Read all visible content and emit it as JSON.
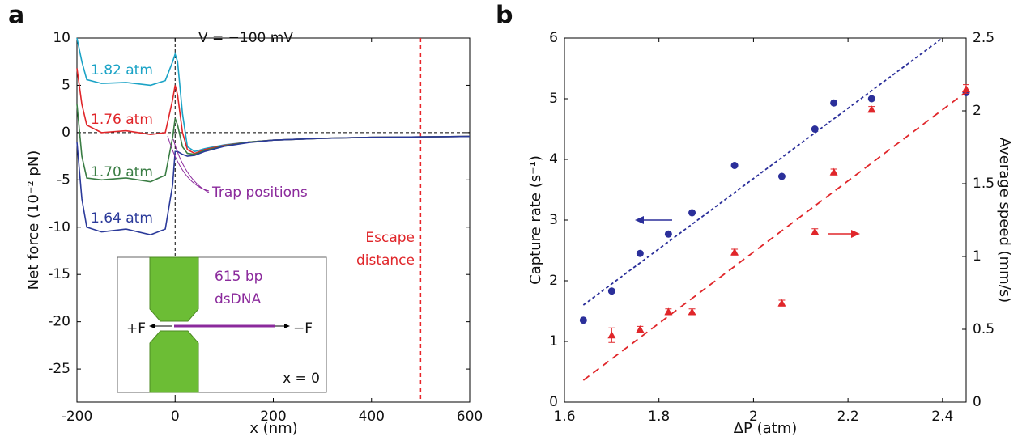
{
  "chart_data": [
    {
      "type": "line",
      "panel": "a",
      "xlabel": "x (nm)",
      "ylabel": "Net force (10⁻² pN)",
      "xlim": [
        -200,
        600
      ],
      "ylim": [
        -28.5,
        10
      ],
      "xticks": [
        -200,
        0,
        200,
        400,
        600
      ],
      "yticks": [
        10,
        5,
        0,
        -5,
        -10,
        -15,
        -20,
        -25
      ],
      "zero_lines": true,
      "escape_x": 500,
      "escape_color": "#e8252a",
      "x": [
        -200,
        -190,
        -180,
        -150,
        -100,
        -50,
        -20,
        -5,
        0,
        5,
        15,
        25,
        40,
        60,
        100,
        150,
        200,
        300,
        400,
        500,
        600
      ],
      "series": [
        {
          "name": "1.82 atm",
          "color": "#1ba3c6",
          "values": [
            10,
            7.5,
            5.6,
            5.2,
            5.3,
            5.0,
            5.5,
            7.5,
            8.3,
            7.5,
            2,
            -1.5,
            -2.0,
            -1.7,
            -1.3,
            -1.0,
            -0.8,
            -0.6,
            -0.5,
            -0.45,
            -0.4
          ]
        },
        {
          "name": "1.76 atm",
          "color": "#e0262a",
          "values": [
            6.8,
            3,
            0.8,
            0,
            0.2,
            -0.2,
            0,
            3.5,
            5,
            4,
            0,
            -1.8,
            -2.2,
            -1.8,
            -1.35,
            -1.0,
            -0.8,
            -0.6,
            -0.5,
            -0.45,
            -0.4
          ]
        },
        {
          "name": "1.70 atm",
          "color": "#3a7d44",
          "values": [
            3,
            -2.5,
            -4.8,
            -5,
            -4.8,
            -5.2,
            -4.5,
            -0.5,
            1.5,
            0.8,
            -1.5,
            -2.2,
            -2.3,
            -1.9,
            -1.4,
            -1.0,
            -0.8,
            -0.6,
            -0.5,
            -0.45,
            -0.4
          ]
        },
        {
          "name": "1.64 atm",
          "color": "#2b3a9a",
          "values": [
            -1,
            -7,
            -10,
            -10.5,
            -10.2,
            -10.8,
            -10.2,
            -5.5,
            -2,
            -2,
            -2.3,
            -2.5,
            -2.4,
            -2.0,
            -1.45,
            -1.05,
            -0.8,
            -0.6,
            -0.5,
            -0.45,
            -0.4
          ]
        }
      ],
      "voltage_label": "V = −100 mV",
      "trap_label": "Trap positions",
      "escape_label": [
        "Escape",
        "distance"
      ],
      "inset": {
        "length": "615 bp",
        "molecule": "dsDNA",
        "plus_force": "+F",
        "minus_force": "−F",
        "origin": "x = 0"
      }
    },
    {
      "type": "scatter",
      "panel": "b",
      "xlabel": "ΔP (atm)",
      "ylabel": "Capture rate (s⁻¹)",
      "y2label": "Average speed (mm/s)",
      "xlim": [
        1.6,
        2.45
      ],
      "ylim": [
        0,
        6
      ],
      "y2lim": [
        0,
        2.5
      ],
      "xticks": [
        1.6,
        1.8,
        2,
        2.2,
        2.4
      ],
      "yticks": [
        0,
        1,
        2,
        3,
        4,
        5,
        6
      ],
      "y2ticks": [
        0,
        0.5,
        1,
        1.5,
        2,
        2.5
      ],
      "series": [
        {
          "color": "#2b2f9a",
          "marker": "circle",
          "x": [
            1.64,
            1.7,
            1.76,
            1.82,
            1.87,
            1.96,
            2.06,
            2.13,
            2.17,
            2.25,
            2.45
          ],
          "values": [
            1.35,
            1.83,
            2.45,
            2.77,
            3.12,
            3.9,
            3.72,
            4.5,
            4.93,
            5.0,
            5.1
          ]
        },
        {
          "color": "#e0262a",
          "marker": "triangle",
          "axis": "y2",
          "x": [
            1.7,
            1.76,
            1.82,
            1.87,
            1.96,
            2.06,
            2.13,
            2.17,
            2.25,
            2.45
          ],
          "values": [
            0.46,
            0.5,
            0.62,
            0.62,
            1.03,
            0.68,
            1.17,
            1.58,
            2.01,
            2.15
          ],
          "errors": [
            0.05,
            0.02,
            0.02,
            0.02,
            0.02,
            0.02,
            0.02,
            0.02,
            0.02,
            0.03
          ]
        },
        {
          "color": "#2b2f9a",
          "marker": "dashed-line",
          "x": [
            1.64,
            2.4
          ],
          "values": [
            1.6,
            6
          ]
        },
        {
          "color": "#e0262a",
          "marker": "dashed-line",
          "axis": "y2",
          "x": [
            1.64,
            2.45
          ],
          "values": [
            0.15,
            2.13
          ]
        }
      ]
    }
  ]
}
